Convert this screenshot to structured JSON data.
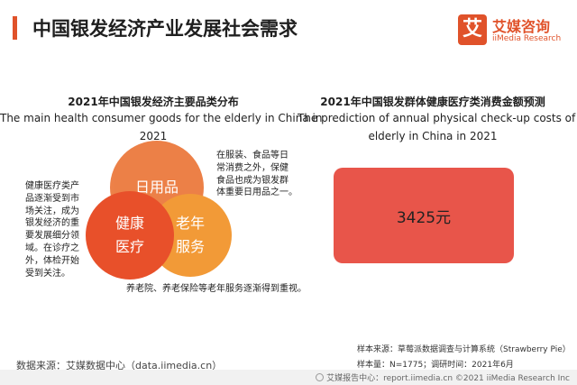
{
  "header": {
    "title": "中国银发经济产业发展社会需求"
  },
  "logo": {
    "mark": "艾",
    "name_cn": "艾媒咨询",
    "name_en": "iiMedia Research"
  },
  "left_panel": {
    "title_cn": "2021年中国银发经济主要品类分布",
    "title_en_1": "The main health consumer goods for the elderly in China in",
    "title_en_2": "2021",
    "circles": {
      "daily_goods": "日用品",
      "health_care": "健康\n医疗",
      "elderly_services": "老年\n服务"
    },
    "note_left": "健康医疗类产\n品逐渐受到市\n场关注，成为\n银发经济的重\n要发展细分领\n域。在诊疗之\n外，体检开始\n受到关注。",
    "note_right": "在服装、食品等日\n常消费之外，保健\n食品也成为银发群\n体重要日用品之一。",
    "note_bottom": "养老院、养老保险等老年服务逐渐得到重视。"
  },
  "right_panel": {
    "title_cn": "2021年中国银发群体健康医疗类消费金额预测",
    "title_en_1": "The prediction of annual physical check-up costs of the",
    "title_en_2": "elderly in China in 2021",
    "value": "3425元"
  },
  "footnotes": {
    "sample_source": "样本来源：草莓派数据调查与计算系统（Strawberry Pie）",
    "sample_size": "样本量：N=1775；调研时间：2021年6月",
    "data_source": "数据来源：艾媒数据中心（data.iimedia.cn）"
  },
  "footer": {
    "text": "艾媒报告中心：report.iimedia.cn  ©2021  iiMedia Research  Inc"
  },
  "colors": {
    "accent": "#e0522a",
    "metric_box": "#e8554a"
  }
}
